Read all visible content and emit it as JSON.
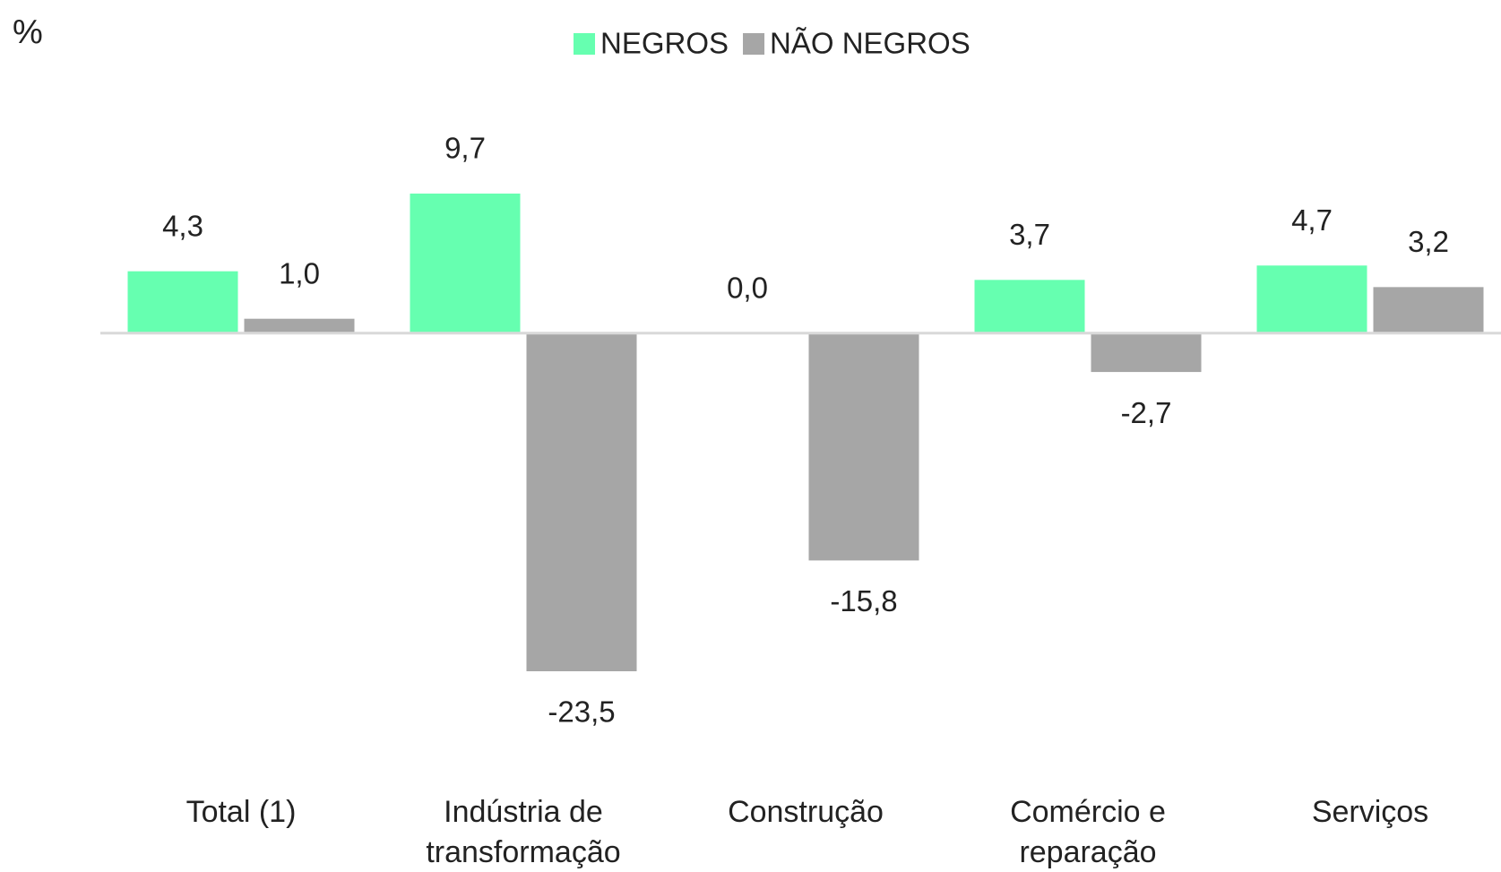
{
  "chart_data": {
    "type": "bar",
    "ylabel": "%",
    "categories": [
      "Total (1)",
      "Indústria de transformação",
      "Construção",
      "Comércio e reparação",
      "Serviços"
    ],
    "series": [
      {
        "name": "NEGROS",
        "color": "#66ffb0",
        "values": [
          4.3,
          9.7,
          0.0,
          3.7,
          4.7
        ],
        "value_labels": [
          "4,3",
          "9,7",
          "0,0",
          "3,7",
          "4,7"
        ]
      },
      {
        "name": "NÃO NEGROS",
        "color": "#a6a6a6",
        "values": [
          1.0,
          -23.5,
          -15.8,
          -2.7,
          3.2
        ],
        "value_labels": [
          "1,0",
          "-23,5",
          "-15,8",
          "-2,7",
          "3,2"
        ]
      }
    ],
    "legend": "top"
  }
}
